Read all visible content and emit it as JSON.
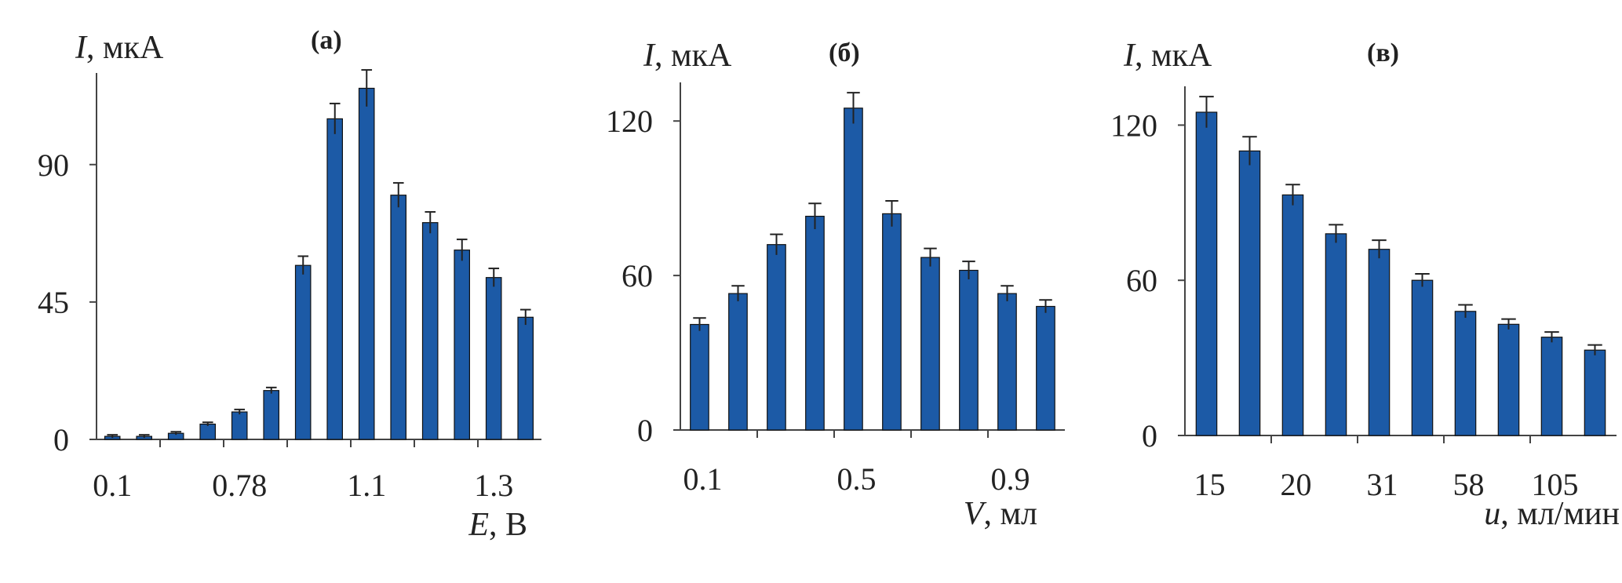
{
  "chart_data": [
    {
      "type": "bar",
      "tag": "(а)",
      "ylabel_symbol": "I",
      "ylabel_unit": ", мкА",
      "xlabel_symbol": "E",
      "xlabel_unit": ", В",
      "ylim": [
        0,
        120
      ],
      "yticks": [
        "0",
        "45",
        "90"
      ],
      "ytick_values": [
        0,
        45,
        90
      ],
      "xtick_labels": [
        "0.1",
        "0.78",
        "1.1",
        "1.3"
      ],
      "xtick_bar_index": [
        0,
        4,
        8,
        12
      ],
      "values": [
        1,
        1,
        2,
        5,
        9,
        16,
        57,
        105,
        115,
        80,
        71,
        62,
        53,
        40
      ],
      "errors": [
        0.5,
        0.5,
        0.5,
        0.6,
        0.8,
        1,
        3,
        5,
        6,
        4,
        3.5,
        3.5,
        3,
        2.5
      ]
    },
    {
      "type": "bar",
      "tag": "(б)",
      "ylabel_symbol": "I",
      "ylabel_unit": ", мкА",
      "xlabel_symbol": "V",
      "xlabel_unit": ", мл",
      "ylim": [
        0,
        135
      ],
      "yticks": [
        "0",
        "60",
        "120"
      ],
      "ytick_values": [
        0,
        60,
        120
      ],
      "xtick_labels": [
        "0.1",
        "0.5",
        "0.9"
      ],
      "xtick_bar_index": [
        0,
        4,
        8
      ],
      "values": [
        41,
        53,
        72,
        83,
        125,
        84,
        67,
        62,
        53,
        48
      ],
      "errors": [
        2.5,
        3,
        4,
        5,
        6,
        5,
        3.5,
        3.5,
        3,
        2.5
      ]
    },
    {
      "type": "bar",
      "tag": "(в)",
      "ylabel_symbol": "I",
      "ylabel_unit": ", мкА",
      "xlabel_symbol": "u",
      "xlabel_unit": ", мл/мин",
      "ylim": [
        0,
        135
      ],
      "yticks": [
        "0",
        "60",
        "120"
      ],
      "ytick_values": [
        0,
        60,
        120
      ],
      "xtick_labels": [
        "15",
        "20",
        "31",
        "58",
        "105"
      ],
      "xtick_bar_index": [
        0,
        2,
        4,
        6,
        8
      ],
      "values": [
        125,
        110,
        93,
        78,
        72,
        60,
        48,
        43,
        38,
        33
      ],
      "errors": [
        6,
        5.5,
        4,
        3.5,
        3.5,
        2.5,
        2.5,
        2,
        2,
        2
      ]
    }
  ],
  "colors": {
    "bar": "#1c5aa6",
    "axis": "#444444",
    "text": "#222222"
  }
}
